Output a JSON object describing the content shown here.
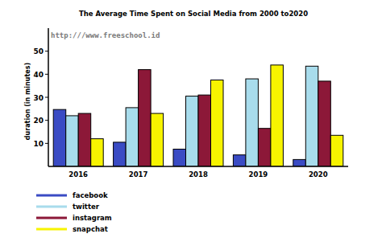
{
  "chart_data": {
    "type": "bar",
    "title": "The Average Time Spent on Social Media from 2000 to2020",
    "annotation": "http:///www.freeschool.id",
    "y_label": "duration (in minutes)",
    "categories": [
      "2016",
      "2017",
      "2018",
      "2019",
      "2020"
    ],
    "series": [
      {
        "name": "facebook",
        "color": "#3a4bc4",
        "values": [
          24.7,
          10.5,
          7.5,
          5,
          3
        ]
      },
      {
        "name": "twitter",
        "color": "#a8dcec",
        "values": [
          22,
          25.5,
          30.5,
          38,
          43.5
        ]
      },
      {
        "name": "instagram",
        "color": "#8c1838",
        "values": [
          23,
          42,
          31,
          16.5,
          37
        ]
      },
      {
        "name": "snapchat",
        "color": "#f7f400",
        "values": [
          12,
          23,
          37.5,
          44,
          13.5
        ]
      }
    ],
    "ylim": [
      0,
      60
    ],
    "yticks": [
      10,
      20,
      30,
      40,
      50
    ],
    "grid": false,
    "legend": "bottom"
  }
}
